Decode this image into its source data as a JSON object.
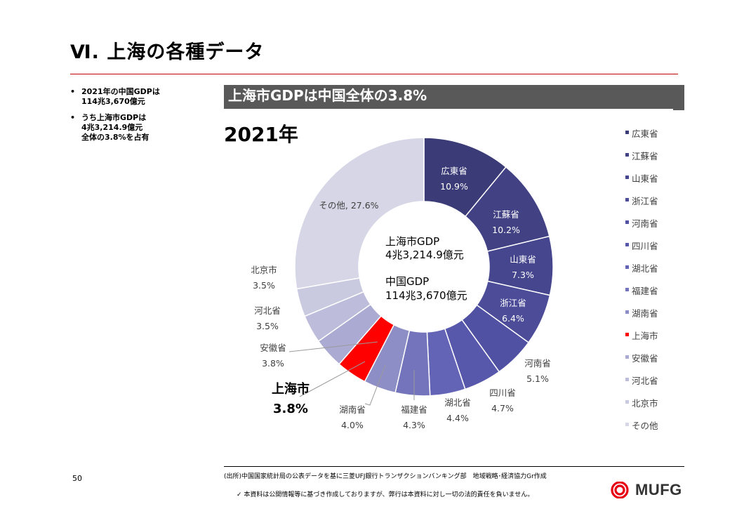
{
  "page": {
    "title": "Ⅵ. 上海の各種データ",
    "bullets": [
      [
        "2021年の中国GDPは",
        "114兆3,670億元"
      ],
      [
        "うち上海市GDPは",
        "4兆3,214.9億元",
        "全体の3.8%を占有"
      ]
    ],
    "bullet_mark": "•",
    "banner": "上海市GDPは中国全体の3.8%",
    "page_number": "50",
    "source": "(出所)中国国家統計局の公表データを基に三菱UFJ銀行トランザクションバンキング部　地域戦略･経済協力Gr作成",
    "disclaimer": "✓ 本資料は公開情報等に基づき作成しておりますが、弊行は本資料に対し一切の法的責任を負いません。",
    "logo_text": "MUFG",
    "logo_color": "#e60012"
  },
  "chart_data": {
    "type": "pie",
    "style": "donut",
    "title": "2021年",
    "center_text": [
      "上海市GDP",
      "4兆3,214.9億元",
      "中国GDP",
      "114兆3,670億元"
    ],
    "value_unit": "%",
    "legend_position": "right",
    "slices": [
      {
        "label": "広東省",
        "value": 10.9,
        "color": "#3b3b78"
      },
      {
        "label": "江蘇省",
        "value": 10.2,
        "color": "#414184"
      },
      {
        "label": "山東省",
        "value": 7.3,
        "color": "#46468f"
      },
      {
        "label": "浙江省",
        "value": 6.4,
        "color": "#4c4c99"
      },
      {
        "label": "河南省",
        "value": 5.1,
        "color": "#5151a3"
      },
      {
        "label": "四川省",
        "value": 4.7,
        "color": "#5757ac"
      },
      {
        "label": "湖北省",
        "value": 4.4,
        "color": "#6464b6"
      },
      {
        "label": "福建省",
        "value": 4.3,
        "color": "#7474bd"
      },
      {
        "label": "湖南省",
        "value": 4.0,
        "color": "#8e8ec7"
      },
      {
        "label": "上海市",
        "value": 3.8,
        "color": "#ff0000"
      },
      {
        "label": "安徽省",
        "value": 3.8,
        "color": "#aaaad2"
      },
      {
        "label": "河北省",
        "value": 3.5,
        "color": "#bdbddb"
      },
      {
        "label": "北京市",
        "value": 3.5,
        "color": "#c9c9e0"
      },
      {
        "label": "その他",
        "value": 27.6,
        "color": "#d6d6e6"
      }
    ]
  }
}
